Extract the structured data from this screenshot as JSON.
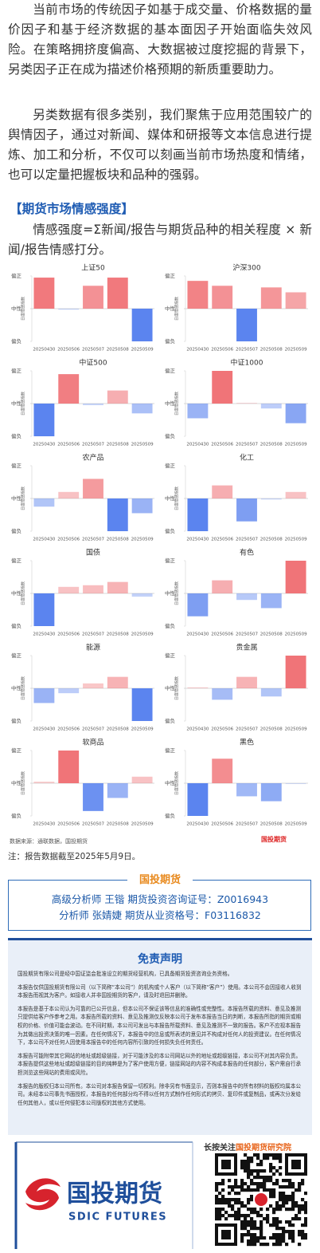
{
  "article": {
    "paragraphs": [
      "当前市场的传统因子如基于成交量、价格数据的量价因子和基于经济数据的基本面因子开始面临失效风险。在策略拥挤度偏高、大数据被过度挖掘的背景下，另类因子正在成为描述价格预期的新质重要助力。",
      "另类数据有很多类别，我们聚焦于应用范围较广的舆情因子，通过对新闻、媒体和研报等文本信息进行提炼、加工和分析，不仅可以刻画当前市场热度和情绪，也可以定量把握板块和品种的强弱。"
    ],
    "section_title": "【期货市场情感强度】",
    "formula": "情感强度=Σ新闻/报告与期货品种的相关程度 × 新闻/报告情感打分。"
  },
  "chart_data": [
    {
      "type": "bar",
      "title": "上证50",
      "ylabel": "日度情感指数",
      "categories": [
        "20250430",
        "20250506",
        "20250507",
        "20250508",
        "20250509"
      ],
      "values": [
        0.95,
        -0.03,
        0.7,
        0.95,
        -1.0
      ],
      "ylim": [
        -1,
        1
      ],
      "yticks": [
        {
          "value": 1,
          "label": "偏正"
        },
        {
          "value": 0,
          "label": "中性"
        },
        {
          "value": -1,
          "label": "偏负"
        }
      ],
      "positive_color": "#f07478",
      "negative_color": "#5b84ef"
    },
    {
      "type": "bar",
      "title": "沪深300",
      "ylabel": "日度情感指数",
      "categories": [
        "20250430",
        "20250506",
        "20250507",
        "20250508",
        "20250509"
      ],
      "values": [
        0.85,
        0.7,
        -1.0,
        0.65,
        0.5
      ],
      "ylim": [
        -1,
        1
      ],
      "yticks": [
        {
          "value": 1,
          "label": "偏正"
        },
        {
          "value": 0,
          "label": "中性"
        },
        {
          "value": -1,
          "label": "偏负"
        }
      ],
      "positive_color": "#f07478",
      "negative_color": "#5b84ef"
    },
    {
      "type": "bar",
      "title": "中证500",
      "ylabel": "日度情感指数",
      "categories": [
        "20250430",
        "20250506",
        "20250507",
        "20250508",
        "20250509"
      ],
      "values": [
        -1.0,
        0.9,
        -0.05,
        0.4,
        -0.3
      ],
      "ylim": [
        -1,
        1
      ],
      "yticks": [
        {
          "value": 1,
          "label": "偏正"
        },
        {
          "value": 0,
          "label": "中性"
        },
        {
          "value": -1,
          "label": "偏负"
        }
      ],
      "positive_color": "#f07478",
      "negative_color": "#5b84ef"
    },
    {
      "type": "bar",
      "title": "中证1000",
      "ylabel": "日度情感指数",
      "categories": [
        "20250430",
        "20250506",
        "20250507",
        "20250508",
        "20250509"
      ],
      "values": [
        -0.45,
        1.0,
        0.02,
        -0.15,
        -0.6
      ],
      "ylim": [
        -1,
        1
      ],
      "yticks": [
        {
          "value": 1,
          "label": "偏正"
        },
        {
          "value": 0,
          "label": "中性"
        },
        {
          "value": -1,
          "label": "偏负"
        }
      ],
      "positive_color": "#f07478",
      "negative_color": "#5b84ef"
    },
    {
      "type": "bar",
      "title": "农产品",
      "ylabel": "日度情感指数",
      "categories": [
        "20250430",
        "20250506",
        "20250507",
        "20250508",
        "20250509"
      ],
      "values": [
        -0.25,
        0.2,
        0.6,
        -1.0,
        -0.45
      ],
      "ylim": [
        -1,
        1
      ],
      "yticks": [
        {
          "value": 1,
          "label": "偏正"
        },
        {
          "value": 0,
          "label": "中性"
        },
        {
          "value": -1,
          "label": "偏负"
        }
      ],
      "positive_color": "#f07478",
      "negative_color": "#5b84ef"
    },
    {
      "type": "bar",
      "title": "化工",
      "ylabel": "日度情感指数",
      "categories": [
        "20250430",
        "20250506",
        "20250507",
        "20250508",
        "20250509"
      ],
      "values": [
        -1.0,
        0.4,
        -0.7,
        -0.03,
        0.2
      ],
      "ylim": [
        -1,
        1
      ],
      "yticks": [
        {
          "value": 1,
          "label": "偏正"
        },
        {
          "value": 0,
          "label": "中性"
        },
        {
          "value": -1,
          "label": "偏负"
        }
      ],
      "positive_color": "#f07478",
      "negative_color": "#5b84ef"
    },
    {
      "type": "bar",
      "title": "国债",
      "ylabel": "日度情感指数",
      "categories": [
        "20250430",
        "20250506",
        "20250507",
        "20250508",
        "20250509"
      ],
      "values": [
        -1.0,
        0.2,
        0.25,
        0.35,
        -0.1
      ],
      "ylim": [
        -1,
        1
      ],
      "yticks": [
        {
          "value": 1,
          "label": "偏正"
        },
        {
          "value": 0,
          "label": "中性"
        },
        {
          "value": -1,
          "label": "偏负"
        }
      ],
      "positive_color": "#f07478",
      "negative_color": "#5b84ef"
    },
    {
      "type": "bar",
      "title": "有色",
      "ylabel": "日度情感指数",
      "categories": [
        "20250430",
        "20250506",
        "20250507",
        "20250508",
        "20250509"
      ],
      "values": [
        -0.7,
        0.4,
        -0.2,
        -0.45,
        1.0
      ],
      "ylim": [
        -1,
        1
      ],
      "yticks": [
        {
          "value": 1,
          "label": "偏正"
        },
        {
          "value": 0,
          "label": "中性"
        },
        {
          "value": -1,
          "label": "偏负"
        }
      ],
      "positive_color": "#f07478",
      "negative_color": "#5b84ef"
    },
    {
      "type": "bar",
      "title": "能源",
      "ylabel": "日度情感指数",
      "categories": [
        "20250430",
        "20250506",
        "20250507",
        "20250508",
        "20250509"
      ],
      "values": [
        -0.45,
        -0.15,
        0.15,
        0.35,
        -1.0
      ],
      "ylim": [
        -1,
        1
      ],
      "yticks": [
        {
          "value": 1,
          "label": "偏正"
        },
        {
          "value": 0,
          "label": "中性"
        },
        {
          "value": -1,
          "label": "偏负"
        }
      ],
      "positive_color": "#f07478",
      "negative_color": "#5b84ef"
    },
    {
      "type": "bar",
      "title": "贵金属",
      "ylabel": "日度情感指数",
      "categories": [
        "20250430",
        "20250506",
        "20250507",
        "20250508",
        "20250509"
      ],
      "values": [
        0.03,
        -0.35,
        0.35,
        -0.25,
        1.0
      ],
      "ylim": [
        -1,
        1
      ],
      "yticks": [
        {
          "value": 1,
          "label": "偏正"
        },
        {
          "value": 0,
          "label": "中性"
        },
        {
          "value": -1,
          "label": "偏负"
        }
      ],
      "positive_color": "#f07478",
      "negative_color": "#5b84ef"
    },
    {
      "type": "bar",
      "title": "软商品",
      "ylabel": "日度情感指数",
      "categories": [
        "20250430",
        "20250506",
        "20250507",
        "20250508",
        "20250509"
      ],
      "values": [
        0.05,
        1.0,
        -0.85,
        -0.45,
        0.2
      ],
      "ylim": [
        -1,
        1
      ],
      "yticks": [
        {
          "value": 1,
          "label": "偏正"
        },
        {
          "value": 0,
          "label": "中性"
        },
        {
          "value": -1,
          "label": "偏负"
        }
      ],
      "positive_color": "#f07478",
      "negative_color": "#5b84ef"
    },
    {
      "type": "bar",
      "title": "黑色",
      "ylabel": "日度情感指数",
      "categories": [
        "20250430",
        "20250506",
        "20250507",
        "20250508",
        "20250509"
      ],
      "values": [
        -1.0,
        0.75,
        -0.4,
        -0.55,
        -0.02
      ],
      "ylim": [
        -1,
        1
      ],
      "yticks": [
        {
          "value": 1,
          "label": "偏正"
        },
        {
          "value": 0,
          "label": "中性"
        },
        {
          "value": -1,
          "label": "偏负"
        }
      ],
      "positive_color": "#f07478",
      "negative_color": "#5b84ef"
    }
  ],
  "source": "数据来源：通联数据，国投期货",
  "source_logo": "国投期货",
  "note": "注：报告数据截至2025年5月9日。",
  "analysts": {
    "title": "国投期货",
    "lines": [
      "高级分析师 王锴 期货投资咨询证号：Z0016943",
      "分析师 张婧婕 期货从业资格号：F03116832"
    ]
  },
  "disclaimer": {
    "title": "免责声明",
    "paragraphs": [
      "国投期货有限公司是经中国证监会批准设立的期货经营机构，已具备期货投资咨询业务资格。",
      "本报告仅供国投期货有限公司（以下简称“本公司”）的机构或个人客户（以下简称“客户”）使用。本公司不会因接收人收到本报告而视其为客户。如接收人并非国投期货的客户，请及时退回并删除。",
      "本报告是基于本公司认为可靠的已公开信息，但本公司不保证该等信息的准确性或完整性。本报告所载的资料、意见及推测只提供给客户作参考之用。本报告所载的资料、意见及推测仅反映本公司于发布本报告当日的判断，本报告所指的期货或期权的价格、价值可能会波动。在不同时期，本公司可发出与本报告所载资料、意见及推测不一致的报告。客户不应视本报告为其做出投资决策的唯一因素。在任何情况下，本报告中的信息或所表述的意见并不构成对任何人的投资建议。在任何情况下，本公司不对任何人因使用本报告中的任何内容所引致的任何损失负任何责任。",
      "本报告可能附带其它网站的地址或超级链接，对于可能涉及的本公司网站以外的地址或超级链接，本公司不对其内容负责。本报告提供这些地址或超级链接的目的纯粹是为了客户使用方便，链接网站的内容不构成本报告的任何部分，客户需自行承担浏览这些网站的费用或风险。",
      "本报告的版权归本公司所有。本公司对本报告保留一切权利。除非另有书面显示，否则本报告中的所有材料的版权均属本公司。未经本公司事先书面授权，本报告的任何部分均不得以任何方式制作任何形式的拷贝、复印件或复制品，或再次分发给任何其他人，或以任何侵犯本公司版权的其他方式使用。"
    ]
  },
  "footer": {
    "brand": "国投期货",
    "brand_en": "SDIC FUTURES",
    "follow_prefix": "长按关注",
    "follow_name": "国投期货研究院"
  }
}
